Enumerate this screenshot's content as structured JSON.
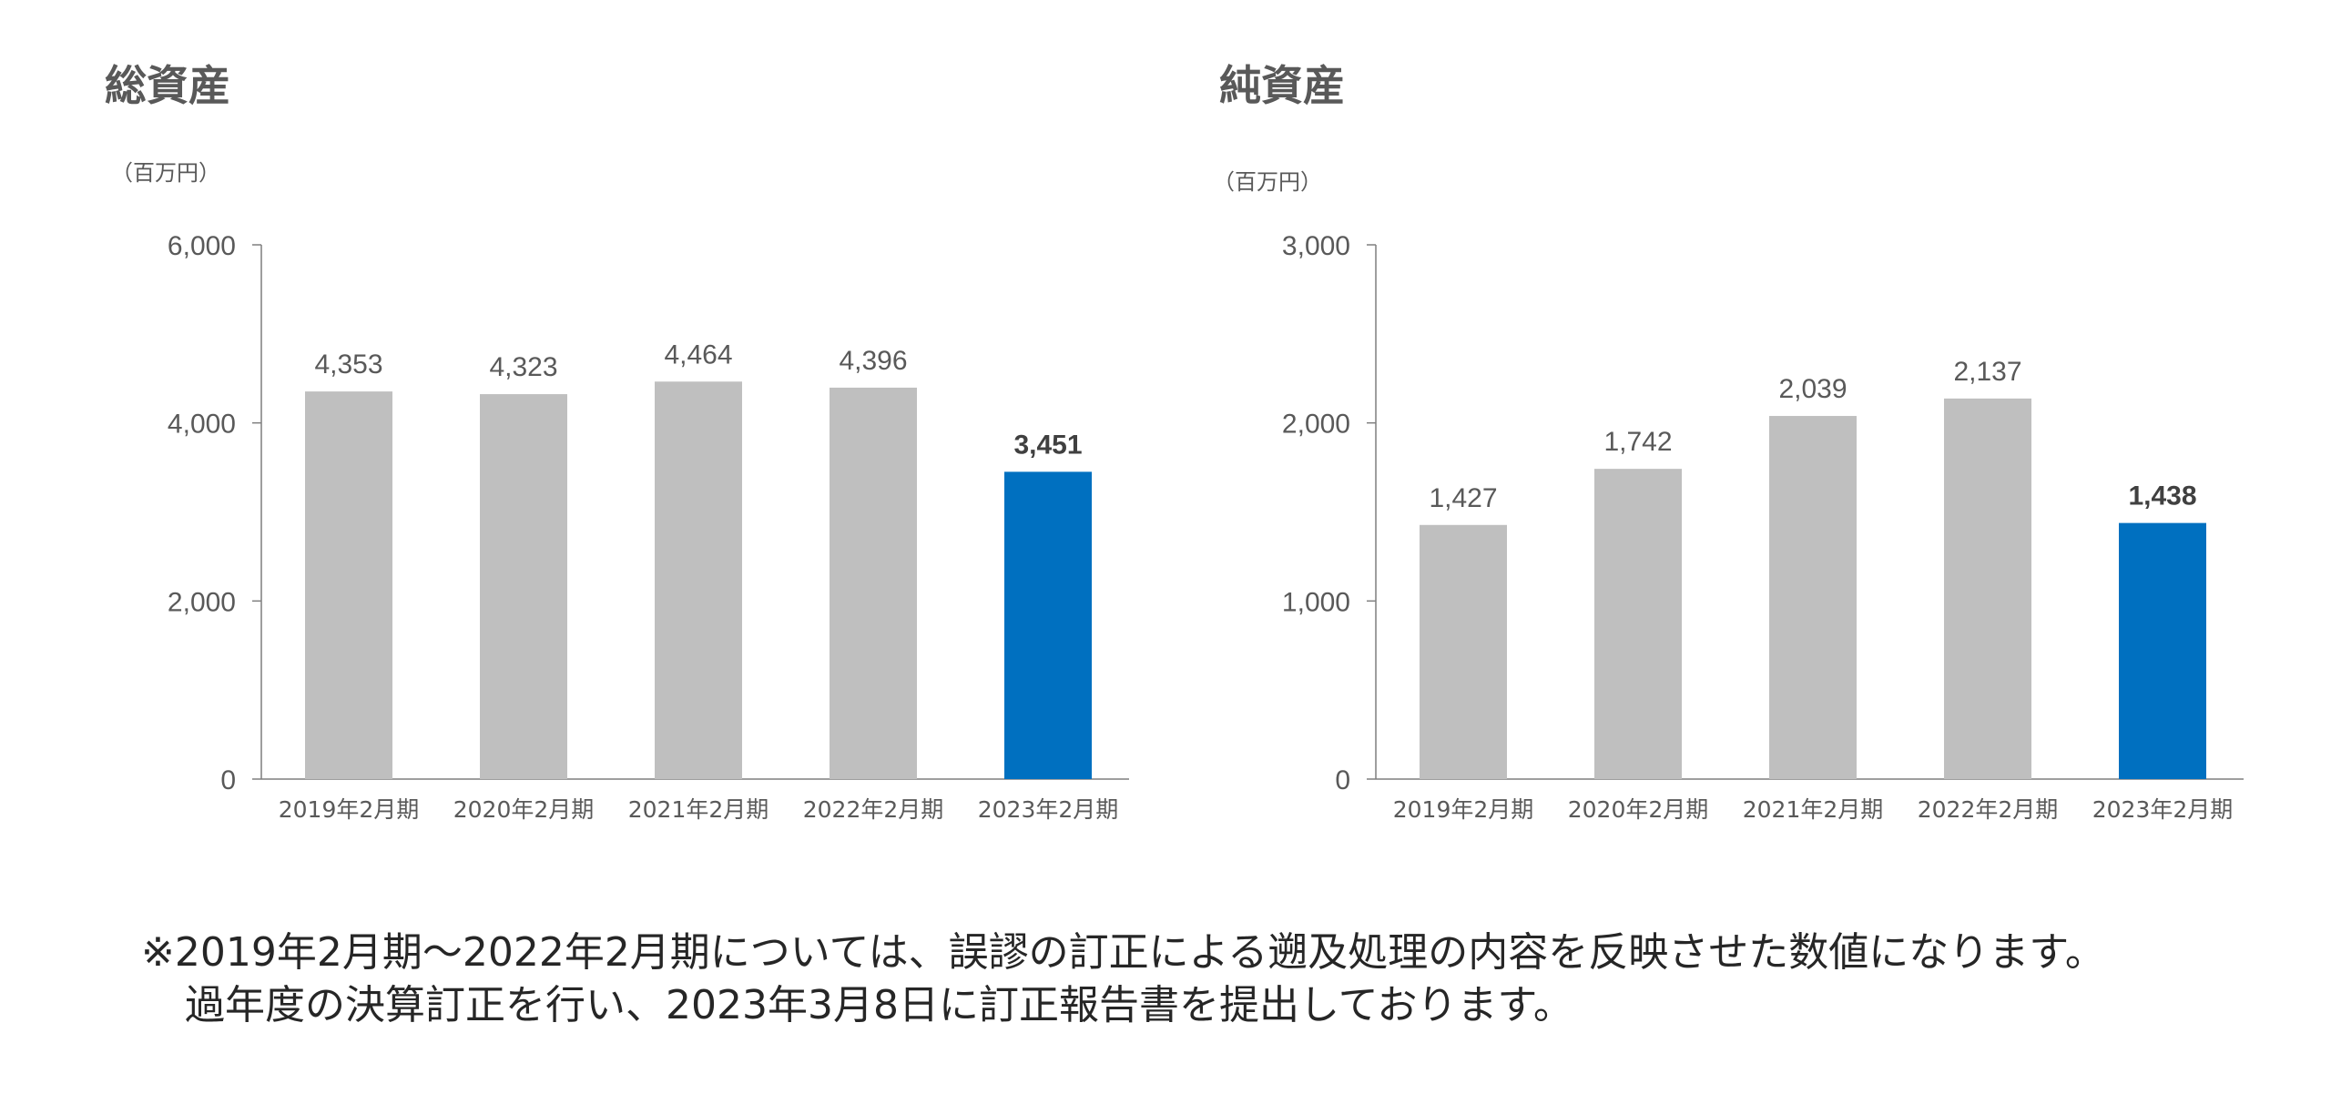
{
  "charts": [
    {
      "title": "総資産",
      "unit": "（百万円）"
    },
    {
      "title": "純資産",
      "unit": "（百万円）"
    }
  ],
  "colors": {
    "bar": "#bfbfbf",
    "highlight": "#0070c0",
    "axis": "#7f7f7f",
    "text": "#595959"
  },
  "chart_data": [
    {
      "type": "bar",
      "title": "総資産",
      "ylabel": "（百万円）",
      "categories": [
        "2019年2月期",
        "2020年2月期",
        "2021年2月期",
        "2022年2月期",
        "2023年2月期"
      ],
      "values": [
        4353,
        4323,
        4464,
        4396,
        3451
      ],
      "labels": [
        "4,353",
        "4,323",
        "4,464",
        "4,396",
        "3,451"
      ],
      "ylim": [
        0,
        6000
      ],
      "yticks": [
        0,
        2000,
        4000,
        6000
      ],
      "ytick_labels": [
        "0",
        "2,000",
        "4,000",
        "6,000"
      ],
      "highlight_index": 4,
      "grid": false
    },
    {
      "type": "bar",
      "title": "純資産",
      "ylabel": "（百万円）",
      "categories": [
        "2019年2月期",
        "2020年2月期",
        "2021年2月期",
        "2022年2月期",
        "2023年2月期"
      ],
      "values": [
        1427,
        1742,
        2039,
        2137,
        1438
      ],
      "labels": [
        "1,427",
        "1,742",
        "2,039",
        "2,137",
        "1,438"
      ],
      "ylim": [
        0,
        3000
      ],
      "yticks": [
        0,
        1000,
        2000,
        3000
      ],
      "ytick_labels": [
        "0",
        "1,000",
        "2,000",
        "3,000"
      ],
      "highlight_index": 4,
      "grid": false
    }
  ],
  "footnote": {
    "line1": "※2019年2月期～2022年2月期については、誤謬の訂正による遡及処理の内容を反映させた数値になります。",
    "line2": "過年度の決算訂正を行い、2023年3月8日に訂正報告書を提出しております。"
  }
}
